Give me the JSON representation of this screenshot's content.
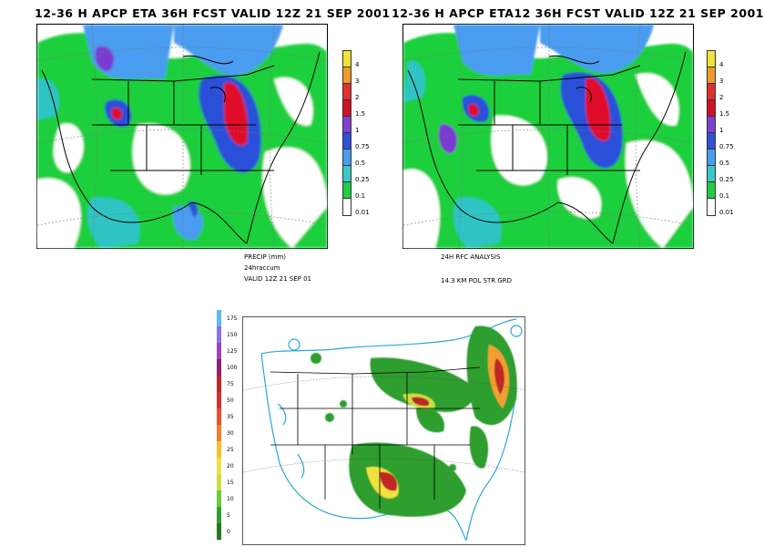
{
  "panels": {
    "left": {
      "title": "12-36 H APCP ETA 36H FCST VALID 12Z 21 SEP 2001"
    },
    "right": {
      "title": "12-36 H APCP ETA12 36H FCST VALID 12Z 21 SEP 2001"
    }
  },
  "forecast_colorbar": {
    "items": [
      {
        "label": "4",
        "color": "#f0e23a"
      },
      {
        "label": "3",
        "color": "#f09a2a"
      },
      {
        "label": "2",
        "color": "#e03030"
      },
      {
        "label": "1.5",
        "color": "#d0102a"
      },
      {
        "label": "1",
        "color": "#8040d0"
      },
      {
        "label": "0.75",
        "color": "#3050d8"
      },
      {
        "label": "0.5",
        "color": "#4a9cf0"
      },
      {
        "label": "0.25",
        "color": "#38c8c8"
      },
      {
        "label": "0.1",
        "color": "#22cc44"
      },
      {
        "label": "0.01",
        "color": "#ffffff"
      }
    ]
  },
  "captions": {
    "left": [
      "PRECIP (mm)",
      "24hraccum",
      "VALID 12Z 21 SEP 01"
    ],
    "right": [
      "24H RFC ANALYSIS",
      "14.3 KM POL STR GRD"
    ]
  },
  "analysis_colorbar": {
    "items": [
      {
        "label": "175",
        "color": "#60b8f0"
      },
      {
        "label": "150",
        "color": "#9070e0"
      },
      {
        "label": "125",
        "color": "#a040c0"
      },
      {
        "label": "100",
        "color": "#902070"
      },
      {
        "label": "75",
        "color": "#c02828"
      },
      {
        "label": "50",
        "color": "#d83030"
      },
      {
        "label": "35",
        "color": "#e85030"
      },
      {
        "label": "30",
        "color": "#f08030"
      },
      {
        "label": "25",
        "color": "#f8c030"
      },
      {
        "label": "20",
        "color": "#f0e040"
      },
      {
        "label": "15",
        "color": "#c8e040"
      },
      {
        "label": "10",
        "color": "#70c840"
      },
      {
        "label": "5",
        "color": "#30a030"
      },
      {
        "label": "0",
        "color": "#207820"
      }
    ]
  },
  "colors": {
    "green": "#1fcf3e",
    "teal": "#2ec4c4",
    "lightblue": "#4a9cf0",
    "blue": "#2c4fd8",
    "purple": "#7a3ad0",
    "red": "#e0102a",
    "analysis_green": "#2e9e2e",
    "analysis_outline": "#2aa8d8"
  }
}
